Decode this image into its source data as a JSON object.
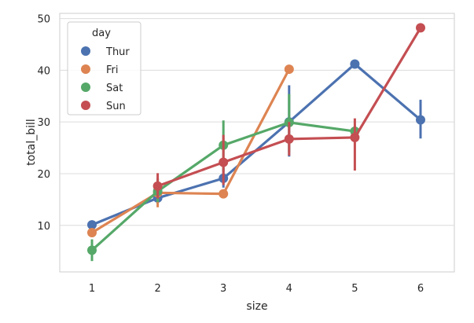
{
  "chart_data": {
    "type": "line",
    "xlabel": "size",
    "ylabel": "total_bill",
    "categories": [
      "1",
      "2",
      "3",
      "4",
      "5",
      "6"
    ],
    "ylim": [
      1,
      51
    ],
    "yticks": [
      10,
      20,
      30,
      40,
      50
    ],
    "grid": true,
    "legend": {
      "title": "day",
      "position": "upper-left"
    },
    "series": [
      {
        "name": "Thur",
        "color": "#4c72b0",
        "values": [
          10.1,
          15.3,
          19.1,
          30.0,
          41.2,
          30.4
        ],
        "ci": [
          null,
          [
            14.2,
            16.5
          ],
          [
            17.3,
            21.1
          ],
          [
            23.3,
            37.1
          ],
          null,
          [
            26.8,
            34.3
          ]
        ]
      },
      {
        "name": "Fri",
        "color": "#dd8452",
        "values": [
          8.6,
          16.3,
          16.1,
          40.2,
          null,
          null
        ],
        "ci": [
          null,
          [
            13.5,
            19.1
          ],
          null,
          null,
          null,
          null
        ]
      },
      {
        "name": "Sat",
        "color": "#55a868",
        "values": [
          5.2,
          16.6,
          25.5,
          29.9,
          28.2,
          null
        ],
        "ci": [
          [
            3.1,
            7.3
          ],
          [
            14.5,
            19.0
          ],
          [
            20.5,
            30.3
          ],
          [
            24.2,
            35.4
          ],
          [
            27.3,
            29.2
          ],
          null
        ]
      },
      {
        "name": "Sun",
        "color": "#c44e52",
        "values": [
          null,
          17.6,
          22.2,
          26.7,
          27.0,
          48.2
        ],
        "ci": [
          null,
          [
            15.2,
            20.1
          ],
          [
            17.8,
            27.5
          ],
          [
            23.5,
            30.0
          ],
          [
            20.6,
            30.7
          ],
          null
        ]
      }
    ]
  }
}
